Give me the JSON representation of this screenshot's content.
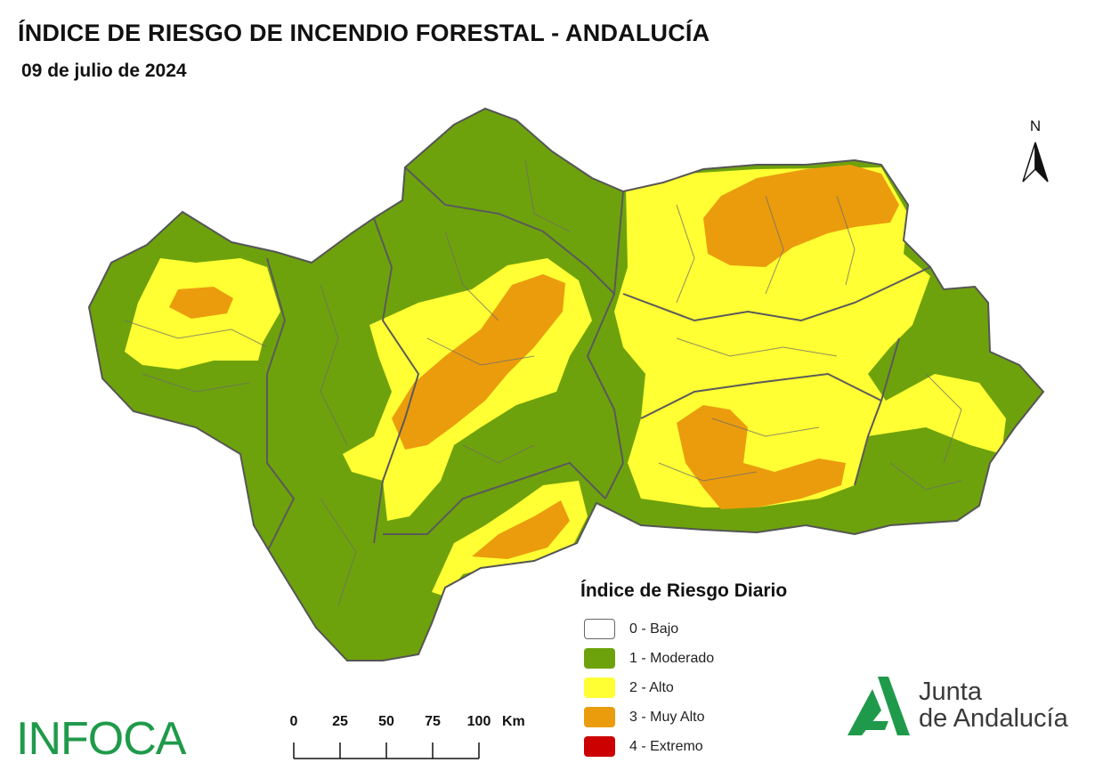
{
  "header": {
    "title": "ÍNDICE DE RIESGO DE INCENDIO FORESTAL - ANDALUCÍA",
    "date": "09 de julio de 2024"
  },
  "north_arrow": {
    "label": "N"
  },
  "legend": {
    "title": "Índice de Riesgo Diario",
    "items": [
      {
        "label": "0 - Bajo",
        "color": "#ffffff"
      },
      {
        "label": "1 - Moderado",
        "color": "#6ea20c"
      },
      {
        "label": "2 - Alto",
        "color": "#ffff33"
      },
      {
        "label": "3 - Muy Alto",
        "color": "#eb9c0d"
      },
      {
        "label": "4 - Extremo",
        "color": "#cc0000"
      }
    ]
  },
  "scale_bar": {
    "ticks": [
      "0",
      "25",
      "50",
      "75",
      "100"
    ],
    "unit": "Km"
  },
  "logos": {
    "infoca": "INFOCA",
    "junta_line1": "Junta",
    "junta_line2": "de Andalucía"
  },
  "map": {
    "region": "Andalucía",
    "boundary_color": "#5a5a5a",
    "dominant_classes": [
      "1 - Moderado",
      "2 - Alto",
      "3 - Muy Alto"
    ]
  }
}
